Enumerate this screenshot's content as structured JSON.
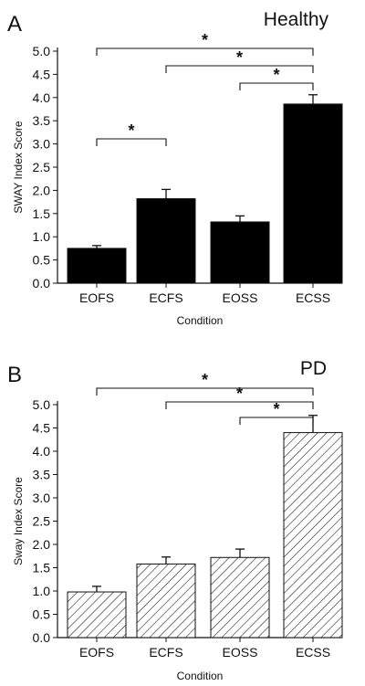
{
  "chart_data": [
    {
      "type": "bar",
      "panel_label": "A",
      "group_label": "Healthy",
      "xlabel": "Condition",
      "ylabel": "SWAY Index Score",
      "categories": [
        "EOFS",
        "ECFS",
        "EOSS",
        "ECSS"
      ],
      "values": [
        0.75,
        1.82,
        1.32,
        3.86
      ],
      "errors": [
        0.06,
        0.2,
        0.13,
        0.2
      ],
      "ylim": [
        0.0,
        5.0
      ],
      "yticks": [
        "0.0",
        "0.5",
        "1.0",
        "1.5",
        "2.0",
        "2.5",
        "3.0",
        "3.5",
        "4.0",
        "4.5",
        "5.0"
      ],
      "bar_fill": "solid",
      "bar_color": "#000000",
      "significance": [
        {
          "from": "EOFS",
          "to": "ECSS",
          "label": "*"
        },
        {
          "from": "ECFS",
          "to": "ECSS",
          "label": "*"
        },
        {
          "from": "EOSS",
          "to": "ECSS",
          "label": "*"
        },
        {
          "from": "EOFS",
          "to": "ECFS",
          "label": "*"
        }
      ]
    },
    {
      "type": "bar",
      "panel_label": "B",
      "group_label": "PD",
      "xlabel": "Condition",
      "ylabel": "Sway Index Score",
      "categories": [
        "EOFS",
        "ECFS",
        "EOSS",
        "ECSS"
      ],
      "values": [
        0.98,
        1.58,
        1.72,
        4.4
      ],
      "errors": [
        0.12,
        0.15,
        0.18,
        0.37
      ],
      "ylim": [
        0.0,
        5.0
      ],
      "yticks": [
        "0.0",
        "0.5",
        "1.0",
        "1.5",
        "2.0",
        "2.5",
        "3.0",
        "3.5",
        "4.0",
        "4.5",
        "5.0"
      ],
      "bar_fill": "hatched",
      "bar_color": "#000000",
      "significance": [
        {
          "from": "EOFS",
          "to": "ECSS",
          "label": "*"
        },
        {
          "from": "ECFS",
          "to": "ECSS",
          "label": "*"
        },
        {
          "from": "EOSS",
          "to": "ECSS",
          "label": "*"
        }
      ]
    }
  ]
}
